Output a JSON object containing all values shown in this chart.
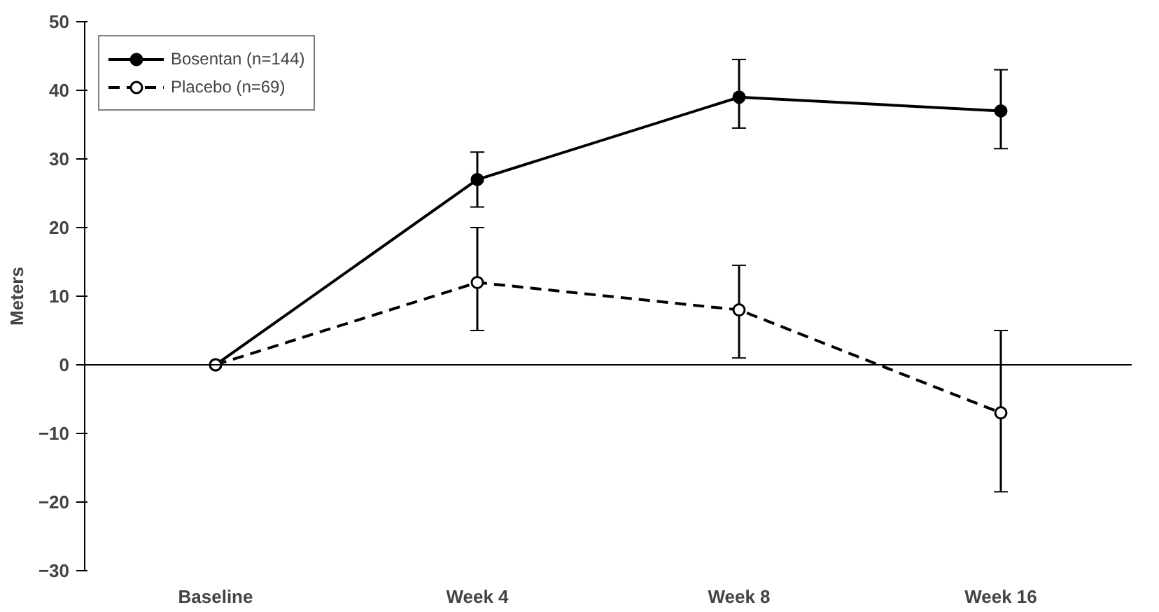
{
  "chart_data": {
    "type": "line",
    "ylabel": "Meters",
    "categories": [
      "Baseline",
      "Week 4",
      "Week 8",
      "Week 16"
    ],
    "series": [
      {
        "name": "Bosentan (n=144)",
        "color": "#000000",
        "marker": "circle",
        "line_style": "solid",
        "values": [
          0,
          27,
          39,
          37
        ],
        "errors": [
          null,
          [
            23,
            31
          ],
          [
            34.5,
            44.5
          ],
          [
            31.5,
            43
          ]
        ]
      },
      {
        "name": "Placebo (n=69)",
        "color": "#000000",
        "marker": "circle",
        "line_style": "dashed",
        "values": [
          0,
          12,
          8,
          -7
        ],
        "errors": [
          null,
          [
            5,
            20
          ],
          [
            1,
            14.5
          ],
          [
            -18.5,
            5
          ]
        ]
      }
    ],
    "ylim": [
      -30,
      50
    ],
    "yticks": [
      -30,
      -20,
      -10,
      0,
      10,
      20,
      30,
      40,
      50
    ],
    "ref_lines": [
      {
        "axis": "y",
        "value": 0,
        "color": "#000000"
      }
    ],
    "grid": false,
    "legend": "top left"
  }
}
